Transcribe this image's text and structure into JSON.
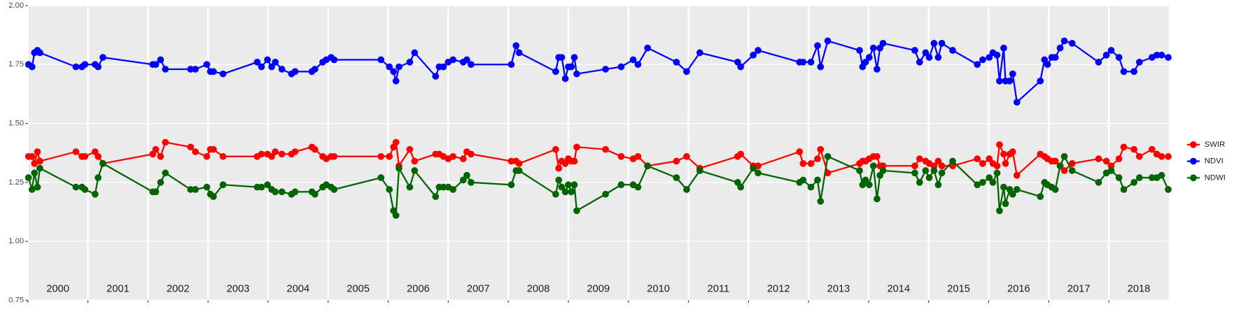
{
  "chart_data": {
    "type": "line",
    "x": [
      2000.01,
      2000.07,
      2000.11,
      2000.16,
      2000.2,
      2000.8,
      2000.9,
      2000.95,
      2001.12,
      2001.17,
      2001.25,
      2002.08,
      2002.13,
      2002.21,
      2002.29,
      2002.71,
      2002.79,
      2002.98,
      2003.04,
      2003.09,
      2003.25,
      2003.82,
      2003.89,
      2003.99,
      2004.06,
      2004.12,
      2004.23,
      2004.39,
      2004.45,
      2004.73,
      2004.78,
      2004.91,
      2004.97,
      2005.05,
      2005.1,
      2005.88,
      2006.02,
      2006.09,
      2006.13,
      2006.18,
      2006.36,
      2006.44,
      2006.79,
      2006.85,
      2006.92,
      2007.0,
      2007.08,
      2007.25,
      2007.31,
      2007.38,
      2008.05,
      2008.13,
      2008.18,
      2008.79,
      2008.84,
      2008.89,
      2008.95,
      2009.0,
      2009.05,
      2009.1,
      2009.14,
      2009.62,
      2009.88,
      2010.08,
      2010.16,
      2010.32,
      2010.8,
      2010.97,
      2011.19,
      2011.82,
      2011.87,
      2012.08,
      2012.16,
      2012.85,
      2012.91,
      2013.04,
      2013.15,
      2013.2,
      2013.32,
      2013.85,
      2013.9,
      2013.95,
      2014.01,
      2014.08,
      2014.14,
      2014.19,
      2014.24,
      2014.77,
      2014.85,
      2014.95,
      2015.01,
      2015.09,
      2015.16,
      2015.22,
      2015.4,
      2015.81,
      2015.9,
      2016.01,
      2016.07,
      2016.14,
      2016.18,
      2016.25,
      2016.28,
      2016.35,
      2016.4,
      2016.47,
      2016.86,
      2016.93,
      2016.98,
      2017.05,
      2017.11,
      2017.19,
      2017.26,
      2017.39,
      2017.83,
      2017.96,
      2018.04,
      2018.17,
      2018.25,
      2018.42,
      2018.51,
      2018.72,
      2018.8,
      2018.88,
      2018.99
    ],
    "series": [
      {
        "name": "SWIR",
        "color": "#ff0000",
        "values": [
          1.36,
          1.36,
          1.33,
          1.38,
          1.34,
          1.38,
          1.36,
          1.36,
          1.38,
          1.36,
          1.33,
          1.37,
          1.39,
          1.36,
          1.42,
          1.4,
          1.38,
          1.36,
          1.39,
          1.39,
          1.36,
          1.36,
          1.37,
          1.37,
          1.36,
          1.38,
          1.37,
          1.37,
          1.38,
          1.4,
          1.39,
          1.36,
          1.35,
          1.36,
          1.36,
          1.36,
          1.36,
          1.4,
          1.42,
          1.32,
          1.39,
          1.34,
          1.37,
          1.37,
          1.36,
          1.35,
          1.36,
          1.35,
          1.38,
          1.37,
          1.34,
          1.34,
          1.33,
          1.39,
          1.31,
          1.34,
          1.33,
          1.35,
          1.34,
          1.34,
          1.4,
          1.39,
          1.36,
          1.35,
          1.36,
          1.32,
          1.34,
          1.36,
          1.31,
          1.36,
          1.37,
          1.32,
          1.32,
          1.38,
          1.33,
          1.33,
          1.35,
          1.39,
          1.29,
          1.33,
          1.34,
          1.34,
          1.35,
          1.36,
          1.36,
          1.32,
          1.32,
          1.32,
          1.35,
          1.34,
          1.33,
          1.32,
          1.34,
          1.32,
          1.32,
          1.35,
          1.33,
          1.35,
          1.33,
          1.32,
          1.41,
          1.37,
          1.33,
          1.37,
          1.38,
          1.28,
          1.37,
          1.36,
          1.35,
          1.34,
          1.34,
          1.32,
          1.3,
          1.33,
          1.35,
          1.34,
          1.32,
          1.35,
          1.4,
          1.39,
          1.36,
          1.39,
          1.37,
          1.36,
          1.36
        ]
      },
      {
        "name": "NDVI",
        "color": "#0000ff",
        "values": [
          1.75,
          1.74,
          1.8,
          1.81,
          1.8,
          1.74,
          1.74,
          1.75,
          1.75,
          1.74,
          1.78,
          1.75,
          1.75,
          1.77,
          1.73,
          1.73,
          1.73,
          1.75,
          1.72,
          1.72,
          1.71,
          1.76,
          1.74,
          1.77,
          1.74,
          1.76,
          1.73,
          1.71,
          1.72,
          1.72,
          1.73,
          1.76,
          1.77,
          1.78,
          1.77,
          1.77,
          1.74,
          1.72,
          1.68,
          1.74,
          1.76,
          1.8,
          1.7,
          1.74,
          1.74,
          1.76,
          1.77,
          1.76,
          1.77,
          1.75,
          1.75,
          1.83,
          1.8,
          1.72,
          1.78,
          1.78,
          1.69,
          1.74,
          1.74,
          1.78,
          1.71,
          1.73,
          1.74,
          1.77,
          1.75,
          1.82,
          1.76,
          1.72,
          1.8,
          1.76,
          1.74,
          1.79,
          1.81,
          1.76,
          1.76,
          1.76,
          1.83,
          1.74,
          1.85,
          1.81,
          1.74,
          1.76,
          1.78,
          1.82,
          1.73,
          1.82,
          1.84,
          1.81,
          1.76,
          1.8,
          1.78,
          1.84,
          1.78,
          1.84,
          1.81,
          1.75,
          1.77,
          1.78,
          1.8,
          1.79,
          1.68,
          1.82,
          1.68,
          1.68,
          1.71,
          1.59,
          1.68,
          1.77,
          1.75,
          1.78,
          1.78,
          1.82,
          1.85,
          1.84,
          1.76,
          1.79,
          1.81,
          1.78,
          1.72,
          1.72,
          1.76,
          1.78,
          1.79,
          1.79,
          1.78
        ]
      },
      {
        "name": "NDWI",
        "color": "#006400",
        "values": [
          1.27,
          1.22,
          1.29,
          1.23,
          1.31,
          1.23,
          1.23,
          1.22,
          1.2,
          1.27,
          1.33,
          1.21,
          1.21,
          1.25,
          1.29,
          1.22,
          1.22,
          1.23,
          1.2,
          1.19,
          1.24,
          1.23,
          1.23,
          1.24,
          1.22,
          1.21,
          1.21,
          1.2,
          1.21,
          1.21,
          1.2,
          1.23,
          1.24,
          1.23,
          1.22,
          1.27,
          1.22,
          1.13,
          1.11,
          1.31,
          1.23,
          1.3,
          1.19,
          1.23,
          1.23,
          1.23,
          1.22,
          1.26,
          1.28,
          1.25,
          1.24,
          1.3,
          1.3,
          1.2,
          1.26,
          1.23,
          1.21,
          1.24,
          1.21,
          1.24,
          1.13,
          1.2,
          1.24,
          1.24,
          1.23,
          1.32,
          1.27,
          1.22,
          1.3,
          1.25,
          1.23,
          1.31,
          1.29,
          1.25,
          1.26,
          1.23,
          1.26,
          1.17,
          1.36,
          1.3,
          1.24,
          1.26,
          1.24,
          1.32,
          1.18,
          1.28,
          1.3,
          1.29,
          1.25,
          1.3,
          1.27,
          1.3,
          1.24,
          1.29,
          1.34,
          1.24,
          1.25,
          1.27,
          1.25,
          1.29,
          1.13,
          1.23,
          1.16,
          1.22,
          1.2,
          1.22,
          1.19,
          1.25,
          1.24,
          1.23,
          1.22,
          1.32,
          1.36,
          1.3,
          1.25,
          1.29,
          1.3,
          1.27,
          1.22,
          1.25,
          1.27,
          1.27,
          1.27,
          1.28,
          1.22
        ]
      }
    ],
    "xlim": [
      2000,
      2019
    ],
    "xticks": [
      2000,
      2001,
      2002,
      2003,
      2004,
      2005,
      2006,
      2007,
      2008,
      2009,
      2010,
      2011,
      2012,
      2013,
      2014,
      2015,
      2016,
      2017,
      2018
    ],
    "ylim": [
      0.75,
      2
    ],
    "yticks": [
      {
        "value": 0.75,
        "label": "0.75"
      },
      {
        "value": 1,
        "label": "1.00"
      },
      {
        "value": 1.25,
        "label": "1.25"
      },
      {
        "value": 1.5,
        "label": "1.50"
      },
      {
        "value": 1.75,
        "label": "1.75"
      },
      {
        "value": 2,
        "label": "2.00"
      }
    ],
    "grid": true,
    "legend": "right"
  }
}
